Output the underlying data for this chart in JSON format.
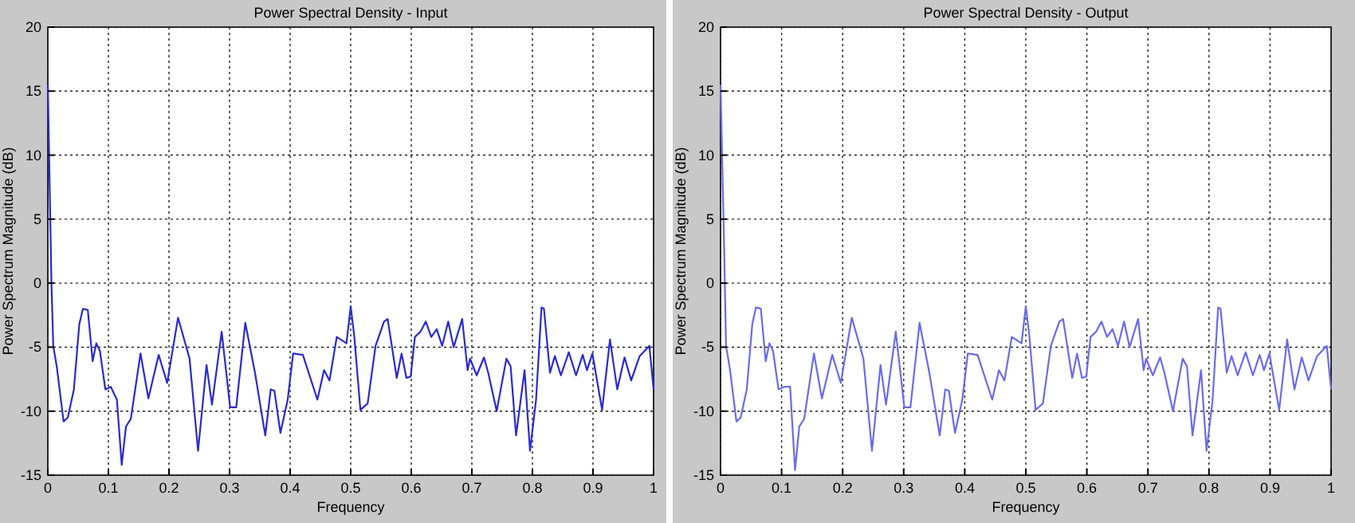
{
  "chart_data": [
    {
      "type": "line",
      "title": "Power Spectral Density - Input",
      "xlabel": "Frequency",
      "ylabel": "Power Spectrum Magnitude (dB)",
      "xlim": [
        0,
        1
      ],
      "ylim": [
        -15,
        20
      ],
      "xticks": [
        0,
        0.1,
        0.2,
        0.3,
        0.4,
        0.5,
        0.6,
        0.7,
        0.8,
        0.9,
        1
      ],
      "yticks": [
        -15,
        -10,
        -5,
        0,
        5,
        10,
        15,
        20
      ],
      "grid": true,
      "line_style": "solid",
      "x": [
        0,
        0.006,
        0.009,
        0.015,
        0.026,
        0.033,
        0.043,
        0.052,
        0.058,
        0.066,
        0.074,
        0.08,
        0.086,
        0.095,
        0.104,
        0.114,
        0.122,
        0.129,
        0.137,
        0.153,
        0.166,
        0.183,
        0.197,
        0.215,
        0.234,
        0.248,
        0.262,
        0.271,
        0.287,
        0.301,
        0.311,
        0.326,
        0.342,
        0.359,
        0.368,
        0.374,
        0.384,
        0.396,
        0.405,
        0.421,
        0.445,
        0.456,
        0.465,
        0.477,
        0.493,
        0.5,
        0.506,
        0.516,
        0.528,
        0.541,
        0.555,
        0.561,
        0.576,
        0.584,
        0.592,
        0.599,
        0.606,
        0.615,
        0.624,
        0.633,
        0.642,
        0.651,
        0.661,
        0.67,
        0.684,
        0.693,
        0.697,
        0.708,
        0.72,
        0.727,
        0.741,
        0.757,
        0.764,
        0.773,
        0.787,
        0.796,
        0.806,
        0.815,
        0.819,
        0.829,
        0.837,
        0.847,
        0.86,
        0.872,
        0.883,
        0.89,
        0.899,
        0.915,
        0.928,
        0.94,
        0.952,
        0.963,
        0.977,
        0.993,
        1
      ],
      "series": [
        {
          "color": "#2a2ad0",
          "values": [
            15.5,
            0,
            -4.9,
            -6.6,
            -10.8,
            -10.5,
            -8.3,
            -3.2,
            -2,
            -2.1,
            -6.1,
            -4.7,
            -5.3,
            -8.3,
            -8.1,
            -9.1,
            -14.2,
            -11.2,
            -10.6,
            -5.5,
            -9,
            -5.6,
            -7.8,
            -2.7,
            -5.9,
            -13.1,
            -6.4,
            -9.5,
            -3.8,
            -9.7,
            -9.7,
            -3.1,
            -7,
            -11.9,
            -8.3,
            -8.4,
            -11.7,
            -9.1,
            -5.5,
            -5.6,
            -9.1,
            -6.8,
            -7.6,
            -4.2,
            -4.7,
            -1.8,
            -4.2,
            -9.9,
            -9.4,
            -4.9,
            -3,
            -2.8,
            -7.4,
            -5.5,
            -7.4,
            -7.3,
            -4.2,
            -3.8,
            -3,
            -4.2,
            -3.6,
            -4.9,
            -3,
            -5,
            -2.8,
            -6.8,
            -5.9,
            -7.2,
            -5.8,
            -7,
            -10,
            -5.9,
            -6.5,
            -11.9,
            -6.8,
            -13.1,
            -9.1,
            -1.9,
            -2,
            -7,
            -5.7,
            -7.2,
            -5.4,
            -7.2,
            -5.6,
            -6.8,
            -5.5,
            -9.9,
            -4.4,
            -8.3,
            -5.8,
            -7.6,
            -5.7,
            -4.9,
            -8.3
          ]
        }
      ]
    },
    {
      "type": "line",
      "title": "Power Spectral Density - Output",
      "xlabel": "Frequency",
      "ylabel": "Power Spectrum Magnitude (dB)",
      "xlim": [
        0,
        1
      ],
      "ylim": [
        -15,
        20
      ],
      "xticks": [
        0,
        0.1,
        0.2,
        0.3,
        0.4,
        0.5,
        0.6,
        0.7,
        0.8,
        0.9,
        1
      ],
      "yticks": [
        -15,
        -10,
        -5,
        0,
        5,
        10,
        15,
        20
      ],
      "grid": true,
      "line_style": "solid",
      "x": [
        0,
        0.006,
        0.009,
        0.015,
        0.026,
        0.033,
        0.043,
        0.052,
        0.058,
        0.066,
        0.074,
        0.08,
        0.086,
        0.095,
        0.104,
        0.114,
        0.122,
        0.129,
        0.137,
        0.153,
        0.166,
        0.183,
        0.197,
        0.215,
        0.234,
        0.248,
        0.262,
        0.271,
        0.287,
        0.301,
        0.311,
        0.326,
        0.342,
        0.359,
        0.368,
        0.374,
        0.384,
        0.396,
        0.405,
        0.421,
        0.445,
        0.456,
        0.465,
        0.477,
        0.493,
        0.5,
        0.506,
        0.516,
        0.528,
        0.541,
        0.555,
        0.561,
        0.576,
        0.584,
        0.592,
        0.599,
        0.606,
        0.615,
        0.624,
        0.633,
        0.642,
        0.651,
        0.661,
        0.67,
        0.684,
        0.693,
        0.697,
        0.708,
        0.72,
        0.727,
        0.741,
        0.757,
        0.764,
        0.773,
        0.787,
        0.796,
        0.806,
        0.815,
        0.819,
        0.829,
        0.837,
        0.847,
        0.86,
        0.872,
        0.883,
        0.89,
        0.899,
        0.915,
        0.928,
        0.94,
        0.952,
        0.963,
        0.977,
        0.993,
        1
      ],
      "series": [
        {
          "color": "#6a6aee",
          "values": [
            15.5,
            2.5,
            -4.9,
            -6.6,
            -10.8,
            -10.5,
            -8.3,
            -3.2,
            -1.9,
            -2,
            -6.1,
            -4.7,
            -5.3,
            -8.3,
            -8.1,
            -8.1,
            -14.6,
            -11.2,
            -10.6,
            -5.5,
            -9,
            -5.6,
            -7.8,
            -2.7,
            -5.9,
            -13.1,
            -6.4,
            -9.5,
            -3.8,
            -9.7,
            -9.7,
            -3.1,
            -7,
            -11.9,
            -8.3,
            -8.4,
            -11.7,
            -9.1,
            -5.5,
            -5.6,
            -9.1,
            -6.8,
            -7.6,
            -4.2,
            -4.7,
            -1.8,
            -4.2,
            -9.9,
            -9.4,
            -4.9,
            -3,
            -2.8,
            -7.4,
            -5.5,
            -7.4,
            -7.3,
            -4.2,
            -3.8,
            -3,
            -4.2,
            -3.6,
            -4.9,
            -3,
            -5,
            -2.8,
            -6.8,
            -5.9,
            -7.2,
            -5.8,
            -7,
            -10,
            -5.9,
            -6.5,
            -11.9,
            -6.8,
            -13.1,
            -9.1,
            -1.9,
            -2,
            -7,
            -5.7,
            -7.2,
            -5.4,
            -7.2,
            -5.6,
            -6.8,
            -5.5,
            -9.9,
            -4.4,
            -8.3,
            -5.8,
            -7.6,
            -5.7,
            -4.9,
            -8.3
          ]
        }
      ]
    }
  ]
}
